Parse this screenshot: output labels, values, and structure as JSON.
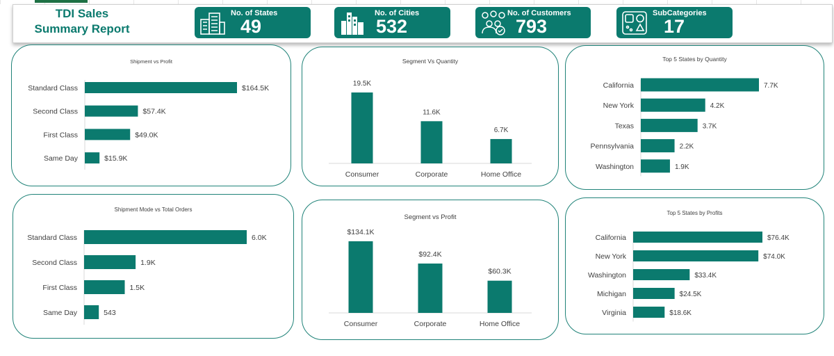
{
  "header": {
    "title_line1": "TDI Sales",
    "title_line2": "Summary Report",
    "kpis": [
      {
        "label": "No. of States",
        "value": "49",
        "icon": "building-icon"
      },
      {
        "label": "No. of Cities",
        "value": "532",
        "icon": "city-skyline-icon"
      },
      {
        "label": "No. of Customers",
        "value": "793",
        "icon": "customers-icon"
      },
      {
        "label": "SubCategories",
        "value": "17",
        "icon": "shapes-icon"
      }
    ]
  },
  "colors": {
    "accent": "#0b7a6e",
    "bar": "#0b7a6e",
    "text": "#404040"
  },
  "chart_data": [
    {
      "id": "shipment-vs-profit",
      "type": "bar",
      "orientation": "horizontal",
      "title": "Shipment vs Profit",
      "categories": [
        "Standard Class",
        "Second Class",
        "First Class",
        "Same Day"
      ],
      "values": [
        164.5,
        57.4,
        49.0,
        15.9
      ],
      "labels": [
        "$164.5K",
        "$57.4K",
        "$49.0K",
        "$15.9K"
      ]
    },
    {
      "id": "segment-vs-quantity",
      "type": "bar",
      "orientation": "vertical",
      "title": "Segment Vs Quantity",
      "categories": [
        "Consumer",
        "Corporate",
        "Home Office"
      ],
      "values": [
        19.5,
        11.6,
        6.7
      ],
      "labels": [
        "19.5K",
        "11.6K",
        "6.7K"
      ]
    },
    {
      "id": "top5-states-quantity",
      "type": "bar",
      "orientation": "horizontal",
      "title": "Top 5 States by Quantity",
      "categories": [
        "California",
        "New York",
        "Texas",
        "Pennsylvania",
        "Washington"
      ],
      "values": [
        7.7,
        4.2,
        3.7,
        2.2,
        1.9
      ],
      "labels": [
        "7.7K",
        "4.2K",
        "3.7K",
        "2.2K",
        "1.9K"
      ]
    },
    {
      "id": "shipment-mode-vs-orders",
      "type": "bar",
      "orientation": "horizontal",
      "title": "Shipment Mode vs Total Orders",
      "categories": [
        "Standard Class",
        "Second Class",
        "First Class",
        "Same Day"
      ],
      "values": [
        6000,
        1900,
        1500,
        543
      ],
      "labels": [
        "6.0K",
        "1.9K",
        "1.5K",
        "543"
      ]
    },
    {
      "id": "segment-vs-profit",
      "type": "bar",
      "orientation": "vertical",
      "title": "Segment vs Profit",
      "categories": [
        "Consumer",
        "Corporate",
        "Home Office"
      ],
      "values": [
        134.1,
        92.4,
        60.3
      ],
      "labels": [
        "$134.1K",
        "$92.4K",
        "$60.3K"
      ]
    },
    {
      "id": "top5-states-profits",
      "type": "bar",
      "orientation": "horizontal",
      "title": "Top 5 States by Profits",
      "categories": [
        "California",
        "New York",
        "Washington",
        "Michigan",
        "Virginia"
      ],
      "values": [
        76.4,
        74.0,
        33.4,
        24.5,
        18.6
      ],
      "labels": [
        "$76.4K",
        "$74.0K",
        "$33.4K",
        "$24.5K",
        "$18.6K"
      ]
    }
  ]
}
